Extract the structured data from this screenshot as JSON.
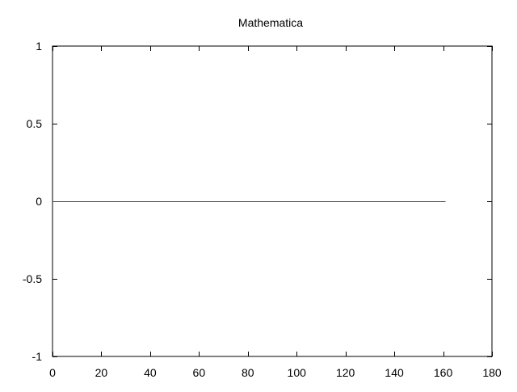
{
  "chart_data": {
    "type": "line",
    "title": "Mathematica",
    "xlabel": "",
    "ylabel": "",
    "xlim": [
      0,
      180
    ],
    "ylim": [
      -1,
      1
    ],
    "x_ticks": [
      0,
      20,
      40,
      60,
      80,
      100,
      120,
      140,
      160,
      180
    ],
    "x_tick_labels": [
      "0",
      "20",
      "40",
      "60",
      "80",
      "100",
      "120",
      "140",
      "160",
      "180"
    ],
    "y_ticks": [
      1,
      0.5,
      0,
      -0.5,
      -1
    ],
    "y_tick_labels": [
      "1",
      "0.5",
      "0",
      "-0.5",
      "-1"
    ],
    "grid": false,
    "series": [
      {
        "color": "#7b1fa2",
        "x": [
          0,
          161
        ],
        "y": [
          0,
          0
        ]
      }
    ]
  }
}
